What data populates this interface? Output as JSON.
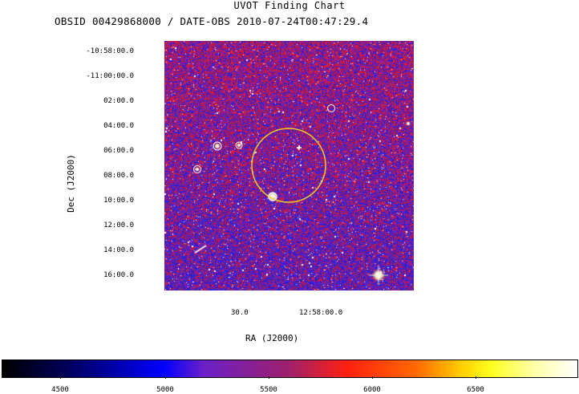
{
  "title": "UVOT Finding Chart",
  "subtitle": "OBSID 00429868000 / DATE-OBS 2010-07-24T00:47:29.4",
  "axes": {
    "ylabel": "Dec (J2000)",
    "xlabel": "RA (J2000)",
    "dec_ticks": [
      "-10:58:00.0",
      "-11:00:00.0",
      "02:00.0",
      "04:00.0",
      "06:00.0",
      "08:00.0",
      "10:00.0",
      "12:00.0",
      "14:00.0",
      "16:00.0"
    ],
    "ra_ticks": [
      "30.0",
      "12:58:00.0"
    ]
  },
  "colorbar": {
    "ticks": [
      "4500",
      "5000",
      "5500",
      "6000",
      "6500"
    ],
    "colors": [
      "#000000",
      "#0000ff",
      "#a0206a",
      "#ff2010",
      "#ffff20",
      "#ffffff"
    ]
  },
  "image": {
    "background_colors": [
      "#2a1fd0",
      "#c81010"
    ],
    "circle_color": "#f2d020",
    "marker_color": "#ffffff"
  }
}
